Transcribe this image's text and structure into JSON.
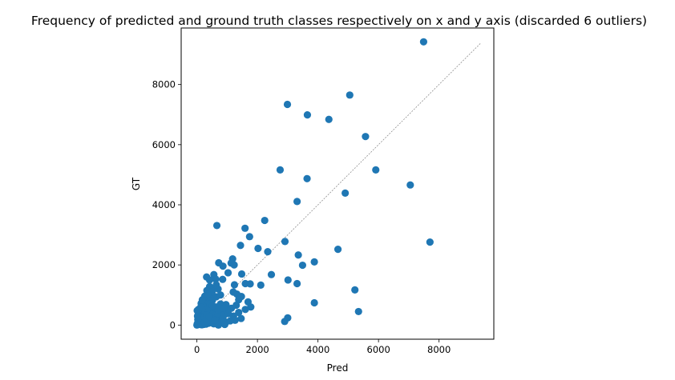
{
  "chart_data": {
    "type": "scatter",
    "title": "Frequency of predicted and ground truth classes respectively on x and y axis (discarded 6 outliers)",
    "xlabel": "Pred",
    "ylabel": "GT",
    "xlim": [
      -520,
      9810
    ],
    "ylim": [
      -470,
      9880
    ],
    "xticks": [
      0,
      2000,
      4000,
      6000,
      8000
    ],
    "yticks": [
      0,
      2000,
      4000,
      6000,
      8000
    ],
    "grid": false,
    "reference_line": {
      "from": [
        0,
        0
      ],
      "to": [
        9390,
        9390
      ],
      "style": "dashed",
      "color": "#808080"
    },
    "marker_color": "#1f77b4",
    "points": [
      [
        7490,
        9420
      ],
      [
        5050,
        7650
      ],
      [
        2990,
        7340
      ],
      [
        3650,
        6990
      ],
      [
        4360,
        6840
      ],
      [
        5570,
        6270
      ],
      [
        2750,
        5160
      ],
      [
        5910,
        5160
      ],
      [
        3640,
        4870
      ],
      [
        7050,
        4660
      ],
      [
        4900,
        4390
      ],
      [
        3310,
        4110
      ],
      [
        660,
        3310
      ],
      [
        2240,
        3480
      ],
      [
        1590,
        3220
      ],
      [
        1740,
        2940
      ],
      [
        2910,
        2780
      ],
      [
        7700,
        2760
      ],
      [
        1440,
        2650
      ],
      [
        2020,
        2550
      ],
      [
        2340,
        2440
      ],
      [
        4660,
        2520
      ],
      [
        3350,
        2330
      ],
      [
        1180,
        2200
      ],
      [
        3490,
        1990
      ],
      [
        3880,
        2100
      ],
      [
        720,
        2070
      ],
      [
        1130,
        2060
      ],
      [
        1230,
        2000
      ],
      [
        860,
        1960
      ],
      [
        1030,
        1740
      ],
      [
        1480,
        1700
      ],
      [
        2460,
        1680
      ],
      [
        3010,
        1500
      ],
      [
        3310,
        1380
      ],
      [
        2110,
        1330
      ],
      [
        1240,
        1340
      ],
      [
        1600,
        1380
      ],
      [
        1760,
        1370
      ],
      [
        5220,
        1170
      ],
      [
        1320,
        1030
      ],
      [
        1470,
        950
      ],
      [
        1380,
        840
      ],
      [
        1690,
        770
      ],
      [
        1780,
        600
      ],
      [
        3880,
        740
      ],
      [
        5340,
        450
      ],
      [
        3000,
        240
      ],
      [
        2900,
        120
      ],
      [
        1140,
        560
      ],
      [
        1000,
        490
      ],
      [
        1210,
        300
      ],
      [
        1460,
        220
      ],
      [
        1260,
        160
      ],
      [
        960,
        100
      ],
      [
        920,
        20
      ],
      [
        820,
        440
      ],
      [
        770,
        170
      ],
      [
        710,
        0
      ],
      [
        640,
        600
      ],
      [
        560,
        1680
      ],
      [
        620,
        1530
      ],
      [
        320,
        1600
      ],
      [
        420,
        1280
      ],
      [
        330,
        1150
      ],
      [
        580,
        1240
      ],
      [
        460,
        1000
      ],
      [
        640,
        940
      ],
      [
        510,
        820
      ],
      [
        300,
        880
      ],
      [
        220,
        760
      ],
      [
        140,
        720
      ],
      [
        300,
        640
      ],
      [
        420,
        560
      ],
      [
        520,
        480
      ],
      [
        380,
        420
      ],
      [
        250,
        380
      ],
      [
        150,
        300
      ],
      [
        90,
        210
      ],
      [
        40,
        120
      ],
      [
        10,
        40
      ],
      [
        0,
        0
      ],
      [
        60,
        50
      ],
      [
        120,
        80
      ],
      [
        200,
        140
      ],
      [
        280,
        190
      ],
      [
        360,
        250
      ],
      [
        440,
        300
      ],
      [
        500,
        360
      ],
      [
        580,
        320
      ],
      [
        660,
        260
      ],
      [
        620,
        180
      ],
      [
        540,
        120
      ],
      [
        460,
        80
      ],
      [
        380,
        60
      ],
      [
        300,
        30
      ],
      [
        220,
        20
      ],
      [
        160,
        10
      ],
      [
        100,
        400
      ],
      [
        60,
        300
      ],
      [
        180,
        520
      ],
      [
        260,
        480
      ],
      [
        340,
        520
      ],
      [
        30,
        180
      ],
      [
        80,
        20
      ],
      [
        140,
        200
      ],
      [
        240,
        260
      ],
      [
        320,
        340
      ],
      [
        400,
        160
      ],
      [
        480,
        220
      ],
      [
        560,
        40
      ],
      [
        680,
        80
      ],
      [
        740,
        380
      ],
      [
        860,
        260
      ],
      [
        900,
        340
      ],
      [
        1040,
        380
      ],
      [
        1100,
        140
      ],
      [
        960,
        680
      ],
      [
        780,
        700
      ],
      [
        700,
        520
      ],
      [
        1300,
        660
      ],
      [
        1380,
        420
      ],
      [
        1600,
        520
      ],
      [
        880,
        560
      ],
      [
        440,
        700
      ],
      [
        520,
        640
      ],
      [
        200,
        620
      ],
      [
        10,
        480
      ],
      [
        20,
        300
      ],
      [
        50,
        520
      ],
      [
        250,
        90
      ],
      [
        330,
        130
      ],
      [
        410,
        280
      ],
      [
        590,
        160
      ],
      [
        780,
        1000
      ],
      [
        700,
        1200
      ],
      [
        850,
        1520
      ],
      [
        1200,
        1100
      ],
      [
        260,
        960
      ],
      [
        180,
        840
      ],
      [
        640,
        1340
      ],
      [
        420,
        1500
      ],
      [
        500,
        1100
      ],
      [
        360,
        1030
      ],
      [
        130,
        600
      ]
    ]
  }
}
